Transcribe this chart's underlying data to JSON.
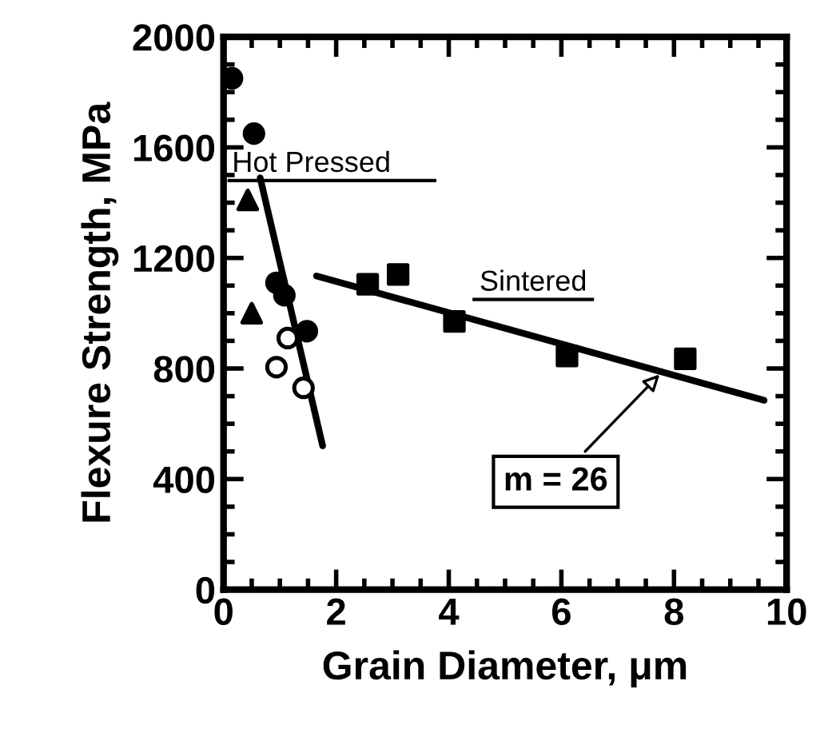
{
  "chart_data": {
    "type": "scatter",
    "xlabel": "Grain Diameter, μm",
    "ylabel": "Flexure Strength, MPa",
    "xlim": [
      0,
      10
    ],
    "ylim": [
      0,
      2000
    ],
    "xticks": [
      0,
      2,
      4,
      6,
      8,
      10
    ],
    "yticks": [
      0,
      400,
      800,
      1200,
      1600,
      2000
    ],
    "grid": false,
    "series": [
      {
        "marker": "circle",
        "color": "#000000",
        "x": [
          0.15,
          0.54,
          0.94,
          1.08,
          1.48
        ],
        "values": [
          1850,
          1650,
          1110,
          1065,
          935
        ]
      },
      {
        "marker": "circle",
        "color": "#ffffff",
        "x": [
          0.94,
          1.14,
          1.42
        ],
        "values": [
          805,
          910,
          730
        ]
      },
      {
        "marker": "triangle",
        "color": "#000000",
        "x": [
          0.43,
          0.5
        ],
        "values": [
          1410,
          1000
        ]
      },
      {
        "marker": "square",
        "color": "#000000",
        "x": [
          2.56,
          3.1,
          4.1,
          6.1,
          8.2
        ],
        "values": [
          1105,
          1140,
          970,
          845,
          835
        ]
      },
      {
        "type": "line",
        "marker": "none",
        "line_style": "solid",
        "color": "#000000",
        "x": [
          0.65,
          1.76
        ],
        "values": [
          1490,
          520
        ]
      },
      {
        "type": "line",
        "marker": "none",
        "line_style": "solid",
        "color": "#000000",
        "x": [
          1.65,
          9.6
        ],
        "values": [
          1135,
          685
        ]
      }
    ],
    "annotations": [
      {
        "text": "Hot Pressed",
        "x": 0.65,
        "y": 1450
      },
      "Sintered",
      {
        "text": "m = 26",
        "x": 7.8,
        "y": 790
      }
    ]
  }
}
